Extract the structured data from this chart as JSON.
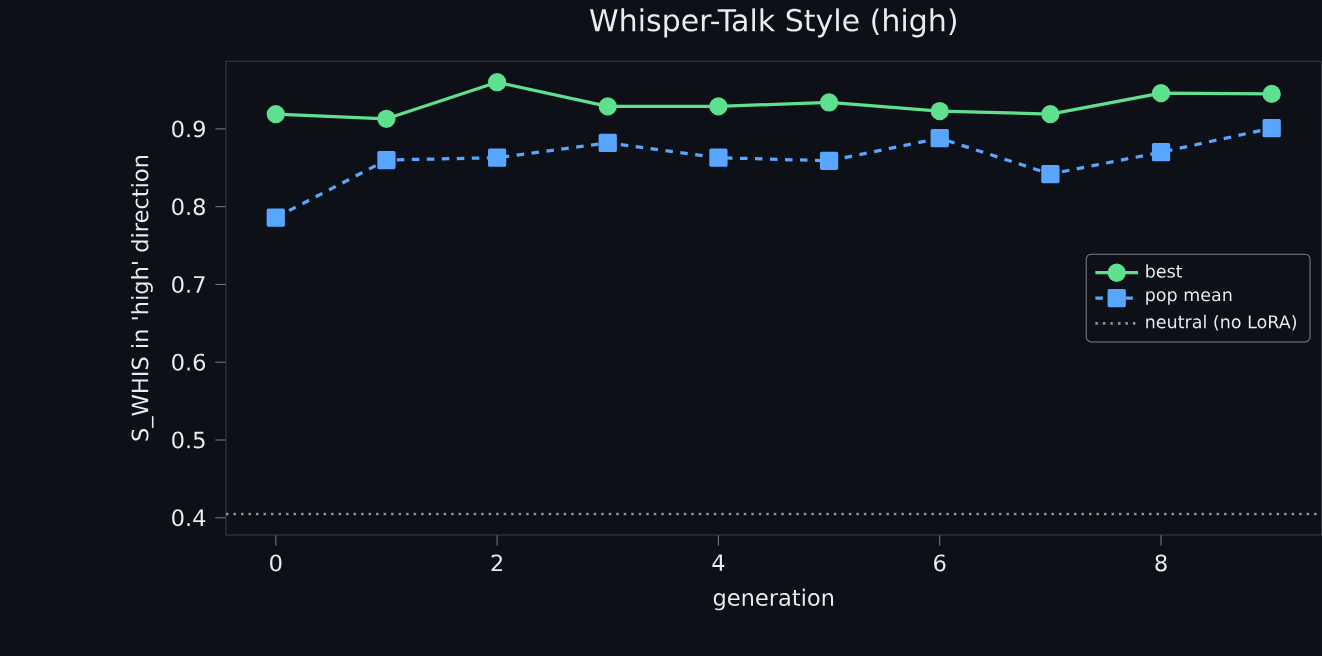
{
  "chart_data": {
    "type": "line",
    "title": "Whisper-Talk Style (high)",
    "xlabel": "generation",
    "ylabel": "S_WHIS in 'high' direction",
    "x": [
      0,
      1,
      2,
      3,
      4,
      5,
      6,
      7,
      8,
      9
    ],
    "series": [
      {
        "name": "best",
        "color": "#5ee08f",
        "marker": "circle",
        "line_style": "solid",
        "values": [
          0.919,
          0.913,
          0.96,
          0.929,
          0.929,
          0.934,
          0.923,
          0.919,
          0.946,
          0.945
        ]
      },
      {
        "name": "pop mean",
        "color": "#58a6ff",
        "marker": "square",
        "line_style": "dashed",
        "values": [
          0.786,
          0.86,
          0.863,
          0.882,
          0.863,
          0.859,
          0.888,
          0.842,
          0.87,
          0.901
        ]
      }
    ],
    "ref_lines": [
      {
        "axis": "y",
        "value": 0.405,
        "label": "neutral (no LoRA)",
        "color": "#8b949e",
        "line_style": "dotted"
      }
    ],
    "xlim": [
      -0.45,
      9.45
    ],
    "ylim": [
      0.378,
      0.987
    ],
    "xticks": [
      0,
      2,
      4,
      6,
      8
    ],
    "yticks": [
      0.4,
      0.5,
      0.6,
      0.7,
      0.8,
      0.9
    ],
    "grid": false,
    "legend": "right"
  }
}
